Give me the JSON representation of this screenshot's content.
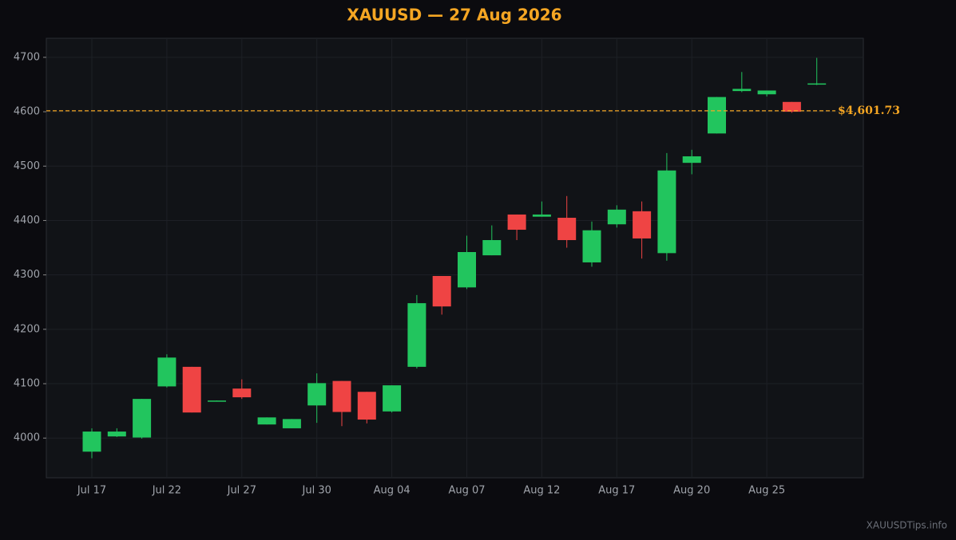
{
  "chart_data": {
    "type": "candlestick",
    "title": "XAUUSD — 27 Aug 2026",
    "categories": [
      "Jul 17",
      null,
      null,
      "Jul 22",
      null,
      null,
      "Jul 27",
      null,
      null,
      "Jul 30",
      null,
      null,
      "Aug 04",
      null,
      null,
      "Aug 07",
      null,
      null,
      "Aug 12",
      null,
      null,
      "Aug 17",
      null,
      null,
      "Aug 20",
      null,
      null,
      "Aug 25",
      null,
      null
    ],
    "open": [
      3975,
      4003,
      4001,
      4095,
      4131,
      4067,
      4091,
      4025,
      4018,
      4060,
      4105,
      4085,
      4049,
      4131,
      4298,
      4277,
      4336,
      4411,
      4407,
      4405,
      4323,
      4393,
      4417,
      4340,
      4506,
      4560,
      4638,
      4632,
      4618,
      4650
    ],
    "high": [
      4018,
      4018,
      4072,
      4154,
      4131,
      4069,
      4108,
      4038,
      4035,
      4119,
      4105,
      4085,
      4097,
      4263,
      4298,
      4372,
      4391,
      4411,
      4435,
      4445,
      4398,
      4428,
      4435,
      4524,
      4530,
      4627,
      4673,
      4639,
      4618,
      4699
    ],
    "low": [
      3963,
      4002,
      3999,
      4093,
      4047,
      4067,
      4072,
      4025,
      4018,
      4028,
      4022,
      4027,
      4047,
      4128,
      4227,
      4274,
      4336,
      4364,
      4407,
      4350,
      4315,
      4387,
      4330,
      4326,
      4485,
      4560,
      4636,
      4628,
      4598,
      4649
    ],
    "close": [
      4012,
      4012,
      4072,
      4148,
      4047,
      4069,
      4075,
      4038,
      4035,
      4101,
      4048,
      4034,
      4097,
      4248,
      4242,
      4342,
      4364,
      4383,
      4411,
      4364,
      4382,
      4420,
      4367,
      4492,
      4518,
      4627,
      4642,
      4639,
      4600,
      4652
    ],
    "up_color": "#22c55e",
    "down_color": "#ef4444",
    "ylim": [
      3927,
      4735
    ],
    "yticks": [
      4000,
      4100,
      4200,
      4300,
      4400,
      4500,
      4600,
      4700
    ],
    "grid": true,
    "reference_line": {
      "value": 4601.73,
      "label": "$4,601.73",
      "color": "#f5a623"
    },
    "watermark": "XAUUSDTips.info"
  }
}
